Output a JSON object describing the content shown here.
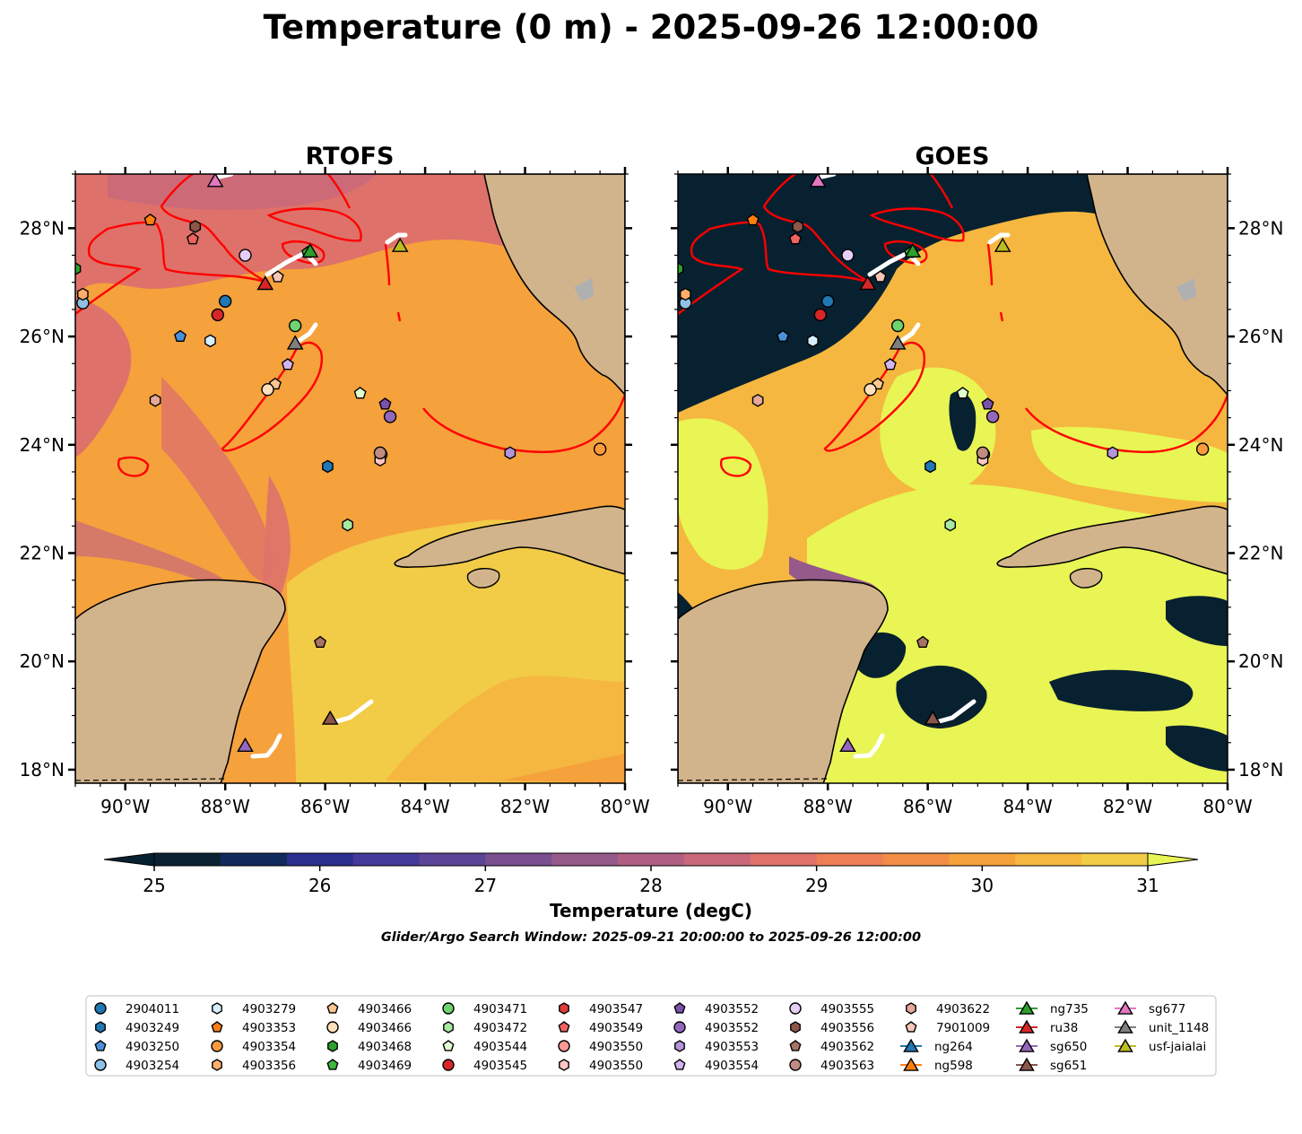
{
  "figure": {
    "title": "Temperature (0 m) - 2025-09-26 12:00:00",
    "search_window": "Glider/Argo Search Window: 2025-09-21 20:00:00 to 2025-09-26 12:00:00"
  },
  "panels": [
    {
      "title": "RTOFS"
    },
    {
      "title": "GOES"
    }
  ],
  "axes": {
    "lon_ticks": [
      "90°W",
      "88°W",
      "86°W",
      "84°W",
      "82°W",
      "80°W"
    ],
    "lat_ticks": [
      "28°N",
      "26°N",
      "24°N",
      "22°N",
      "20°N",
      "18°N"
    ],
    "lon_range": [
      -91,
      -80
    ],
    "lat_range": [
      17.75,
      29
    ]
  },
  "colorbar": {
    "label": "Temperature (degC)",
    "min": 25,
    "max": 31,
    "step": 0.5,
    "ticks": [
      "25",
      "26",
      "27",
      "28",
      "29",
      "30",
      "31"
    ],
    "colors": [
      "#0b2233",
      "#102a5c",
      "#2a2e8c",
      "#433a9a",
      "#5c4596",
      "#7a4f90",
      "#95598a",
      "#b05f82",
      "#c8687a",
      "#de726a",
      "#ec7f56",
      "#f28d47",
      "#f5a13c",
      "#f5b73f",
      "#f2cb47"
    ],
    "over_color": "#e8f554",
    "under_color": "#082130"
  },
  "map_colors": {
    "land": "#d2b48c",
    "lake": "#a6c8e8",
    "rtofs_warm": "#f5a13c",
    "rtofs_cool": "#de726a",
    "rtofs_hot": "#f2cb47",
    "goes_cloud": "#082130",
    "goes_hot": "#e8f554",
    "goes_warm": "#f5b73f",
    "contour": "#ff0000",
    "track": "#ffffff"
  },
  "legend": [
    {
      "label": "2904011",
      "marker": "circle",
      "color": "#1f77b4"
    },
    {
      "label": "4903249",
      "marker": "hexagon",
      "color": "#1f77b4"
    },
    {
      "label": "4903250",
      "marker": "pentagon",
      "color": "#4a90d9"
    },
    {
      "label": "4903254",
      "marker": "circle",
      "color": "#8fc1e6"
    },
    {
      "label": "4903279",
      "marker": "hexagon",
      "color": "#d6efff"
    },
    {
      "label": "4903353",
      "marker": "pentagon",
      "color": "#ff7f0e"
    },
    {
      "label": "4903354",
      "marker": "circle",
      "color": "#ff9a3c"
    },
    {
      "label": "4903356",
      "marker": "hexagon",
      "color": "#ffae6b"
    },
    {
      "label": "4903466",
      "marker": "pentagon",
      "color": "#ffc78f"
    },
    {
      "label": "4903466",
      "marker": "circle",
      "color": "#ffe0bd"
    },
    {
      "label": "4903468",
      "marker": "hexagon",
      "color": "#2ca02c"
    },
    {
      "label": "4903469",
      "marker": "pentagon",
      "color": "#3cb83c"
    },
    {
      "label": "4903471",
      "marker": "circle",
      "color": "#6fd36f"
    },
    {
      "label": "4903472",
      "marker": "hexagon",
      "color": "#a8e8a0"
    },
    {
      "label": "4903544",
      "marker": "pentagon",
      "color": "#e0ffd0"
    },
    {
      "label": "4903545",
      "marker": "circle",
      "color": "#d62728"
    },
    {
      "label": "4903547",
      "marker": "hexagon",
      "color": "#e23b3b"
    },
    {
      "label": "4903549",
      "marker": "pentagon",
      "color": "#f06262"
    },
    {
      "label": "4903550",
      "marker": "circle",
      "color": "#ff9896"
    },
    {
      "label": "4903550",
      "marker": "hexagon",
      "color": "#ffc6c4"
    },
    {
      "label": "4903552",
      "marker": "pentagon",
      "color": "#7b52ab"
    },
    {
      "label": "4903552",
      "marker": "circle",
      "color": "#9467bd"
    },
    {
      "label": "4903553",
      "marker": "hexagon",
      "color": "#b594d9"
    },
    {
      "label": "4903554",
      "marker": "pentagon",
      "color": "#d2b5f0"
    },
    {
      "label": "4903555",
      "marker": "circle",
      "color": "#e6cff7"
    },
    {
      "label": "4903556",
      "marker": "hexagon",
      "color": "#8c564b"
    },
    {
      "label": "4903562",
      "marker": "pentagon",
      "color": "#a87365"
    },
    {
      "label": "4903563",
      "marker": "circle",
      "color": "#c08b80"
    },
    {
      "label": "4903622",
      "marker": "hexagon",
      "color": "#e6a89a"
    },
    {
      "label": "7901009",
      "marker": "pentagon",
      "color": "#f7c6b7"
    },
    {
      "label": "ng264",
      "marker": "triangle-line",
      "color": "#1f77b4"
    },
    {
      "label": "ng598",
      "marker": "triangle-line",
      "color": "#ff7f0e"
    },
    {
      "label": "ng735",
      "marker": "triangle-line",
      "color": "#2ca02c"
    },
    {
      "label": "ru38",
      "marker": "triangle-line",
      "color": "#d62728"
    },
    {
      "label": "sg650",
      "marker": "triangle-line",
      "color": "#9467bd"
    },
    {
      "label": "sg651",
      "marker": "triangle-line",
      "color": "#8c564b"
    },
    {
      "label": "sg677",
      "marker": "triangle-line",
      "color": "#e377c2"
    },
    {
      "label": "unit_1148",
      "marker": "triangle-line",
      "color": "#7f7f7f"
    },
    {
      "label": "usf-jaialai",
      "marker": "triangle-line",
      "color": "#bcbd22"
    }
  ],
  "observations": [
    {
      "id": "2904011",
      "lon": -88.0,
      "lat": 26.65
    },
    {
      "id": "4903249",
      "lon": -85.95,
      "lat": 23.6
    },
    {
      "id": "4903250",
      "lon": -88.9,
      "lat": 26.0
    },
    {
      "id": "4903254",
      "lon": -90.85,
      "lat": 26.62
    },
    {
      "id": "4903279",
      "lon": -88.3,
      "lat": 25.92
    },
    {
      "id": "4903353",
      "lon": -89.5,
      "lat": 28.15
    },
    {
      "id": "4903354",
      "lon": -80.5,
      "lat": 23.92
    },
    {
      "id": "4903356",
      "lon": -90.85,
      "lat": 26.78
    },
    {
      "id": "4903466",
      "lon": -87.0,
      "lat": 25.12
    },
    {
      "id": "4903466",
      "lon": -87.15,
      "lat": 25.02
    },
    {
      "id": "4903468",
      "lon": -91.0,
      "lat": 27.25
    },
    {
      "id": "4903469",
      "lon": -86.35,
      "lat": 27.55
    },
    {
      "id": "4903471",
      "lon": -86.6,
      "lat": 26.2
    },
    {
      "id": "4903472",
      "lon": -85.55,
      "lat": 22.52
    },
    {
      "id": "4903544",
      "lon": -85.3,
      "lat": 24.95
    },
    {
      "id": "4903545",
      "lon": -88.15,
      "lat": 26.4
    },
    {
      "id": "4903547",
      "lon": -84.88,
      "lat": 23.82
    },
    {
      "id": "4903549",
      "lon": -88.65,
      "lat": 27.8
    },
    {
      "id": "4903550",
      "lon": -84.88,
      "lat": 23.82
    },
    {
      "id": "4903550",
      "lon": -84.9,
      "lat": 23.72
    },
    {
      "id": "4903552",
      "lon": -84.8,
      "lat": 24.75
    },
    {
      "id": "4903552",
      "lon": -84.7,
      "lat": 24.52
    },
    {
      "id": "4903553",
      "lon": -82.3,
      "lat": 23.85
    },
    {
      "id": "4903554",
      "lon": -86.75,
      "lat": 25.48
    },
    {
      "id": "4903555",
      "lon": -87.6,
      "lat": 27.5
    },
    {
      "id": "4903556",
      "lon": -88.6,
      "lat": 28.03
    },
    {
      "id": "4903562",
      "lon": -86.1,
      "lat": 20.35
    },
    {
      "id": "4903563",
      "lon": -84.9,
      "lat": 23.85
    },
    {
      "id": "4903622",
      "lon": -89.4,
      "lat": 24.82
    },
    {
      "id": "7901009",
      "lon": -86.95,
      "lat": 27.1
    },
    {
      "id": "ng735",
      "lon": -86.3,
      "lat": 27.58
    },
    {
      "id": "ru38",
      "lon": -87.2,
      "lat": 26.98
    },
    {
      "id": "sg650",
      "lon": -87.6,
      "lat": 18.45
    },
    {
      "id": "sg651",
      "lon": -85.9,
      "lat": 18.95
    },
    {
      "id": "sg677",
      "lon": -88.2,
      "lat": 28.88
    },
    {
      "id": "unit_1148",
      "lon": -86.6,
      "lat": 25.88
    },
    {
      "id": "usf-jaialai",
      "lon": -84.5,
      "lat": 27.68
    }
  ]
}
